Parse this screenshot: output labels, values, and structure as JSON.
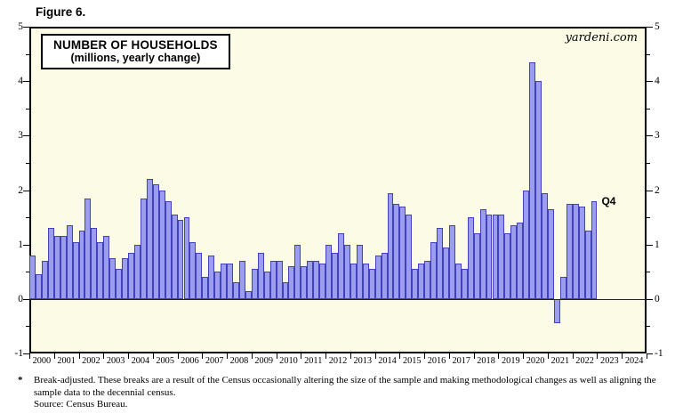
{
  "figure_label": "Figure 6.",
  "title_box": {
    "line1": "NUMBER OF HOUSEHOLDS",
    "line2": "(millions, yearly change)"
  },
  "watermark": "yardeni.com",
  "footnote": {
    "marker": "*",
    "text": "Break-adjusted. These breaks are a result of the Census occasionally altering the size of the sample and making methodological changes as well as aligning the sample data to the decennial census.",
    "source": "Source: Census Bureau."
  },
  "colors": {
    "plot_background": "#FBFBE6",
    "bar_fill": "#9D9DEF",
    "bar_border": "#4141BE",
    "axis": "#000000"
  },
  "chart_data": {
    "type": "bar",
    "title": "NUMBER OF HOUSEHOLDS (millions, yearly change)",
    "ylabel": "millions, yearly change",
    "ylim": [
      -1,
      5
    ],
    "y_ticks": [
      5,
      4,
      3,
      2,
      1,
      0,
      -1
    ],
    "y_minor_step": 0.5,
    "x_tick_years": [
      2000,
      2001,
      2002,
      2003,
      2004,
      2005,
      2006,
      2007,
      2008,
      2009,
      2010,
      2011,
      2012,
      2013,
      2014,
      2015,
      2016,
      2017,
      2018,
      2019,
      2020,
      2021,
      2022,
      2023,
      2024
    ],
    "x_axis_end_year": 2025,
    "frequency": "quarterly",
    "last_point_label": "Q4",
    "legend_position": "none",
    "grid": false,
    "series": [
      {
        "name": "Number of households (millions, yearly change)",
        "start": "2000Q1",
        "end": "2022Q4",
        "values": [
          0.8,
          0.45,
          0.7,
          1.3,
          1.15,
          1.15,
          1.35,
          1.05,
          1.25,
          1.85,
          1.3,
          1.05,
          1.15,
          0.75,
          0.55,
          0.75,
          0.85,
          1.0,
          1.85,
          2.2,
          2.1,
          2.0,
          1.8,
          1.55,
          1.45,
          1.5,
          1.05,
          0.85,
          0.4,
          0.8,
          0.5,
          0.65,
          0.65,
          0.3,
          0.7,
          0.15,
          0.55,
          0.85,
          0.5,
          0.7,
          0.7,
          0.3,
          0.6,
          1.0,
          0.6,
          0.7,
          0.7,
          0.65,
          1.0,
          0.85,
          1.2,
          1.0,
          0.65,
          1.0,
          0.65,
          0.55,
          0.8,
          0.85,
          1.95,
          1.75,
          1.7,
          1.55,
          0.55,
          0.65,
          0.7,
          1.05,
          1.3,
          0.95,
          1.35,
          0.65,
          0.55,
          1.5,
          1.2,
          1.65,
          1.55,
          1.55,
          1.55,
          1.2,
          1.35,
          1.4,
          2.0,
          4.35,
          4.0,
          1.95,
          1.65,
          -0.45,
          0.4,
          1.75,
          1.75,
          1.7,
          1.25,
          1.8
        ]
      }
    ]
  }
}
